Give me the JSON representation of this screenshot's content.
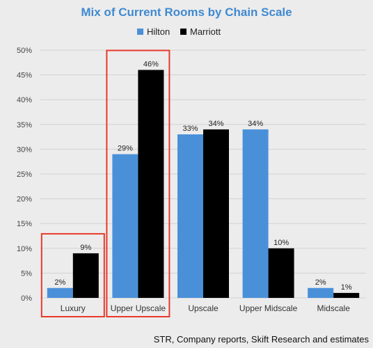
{
  "chart_data": {
    "type": "bar",
    "title": "Mix of Current Rooms by Chain Scale",
    "categories": [
      "Luxury",
      "Upper Upscale",
      "Upscale",
      "Upper Midscale",
      "Midscale"
    ],
    "series": [
      {
        "name": "Hilton",
        "values": [
          2,
          29,
          33,
          34,
          2
        ],
        "labels": [
          "2%",
          "29%",
          "33%",
          "34%",
          "2%"
        ],
        "color": "#4a90d9"
      },
      {
        "name": "Marriott",
        "values": [
          9,
          46,
          34,
          10,
          1
        ],
        "labels": [
          "9%",
          "46%",
          "34%",
          "10%",
          "1%"
        ],
        "color": "#000000"
      }
    ],
    "ylim": [
      0,
      50
    ],
    "yticks": [
      0,
      5,
      10,
      15,
      20,
      25,
      30,
      35,
      40,
      45,
      50
    ],
    "ytick_labels": [
      "0%",
      "5%",
      "10%",
      "15%",
      "20%",
      "25%",
      "30%",
      "35%",
      "40%",
      "45%",
      "50%"
    ],
    "xlabel": "",
    "ylabel": "",
    "grid": true,
    "legend_position": "top-center",
    "title_color": "#3f8ad1",
    "highlight_color": "#e8392b",
    "highlighted_categories": [
      "Luxury",
      "Upper Upscale"
    ]
  },
  "source": "STR, Company reports, Skift Research and estimates"
}
